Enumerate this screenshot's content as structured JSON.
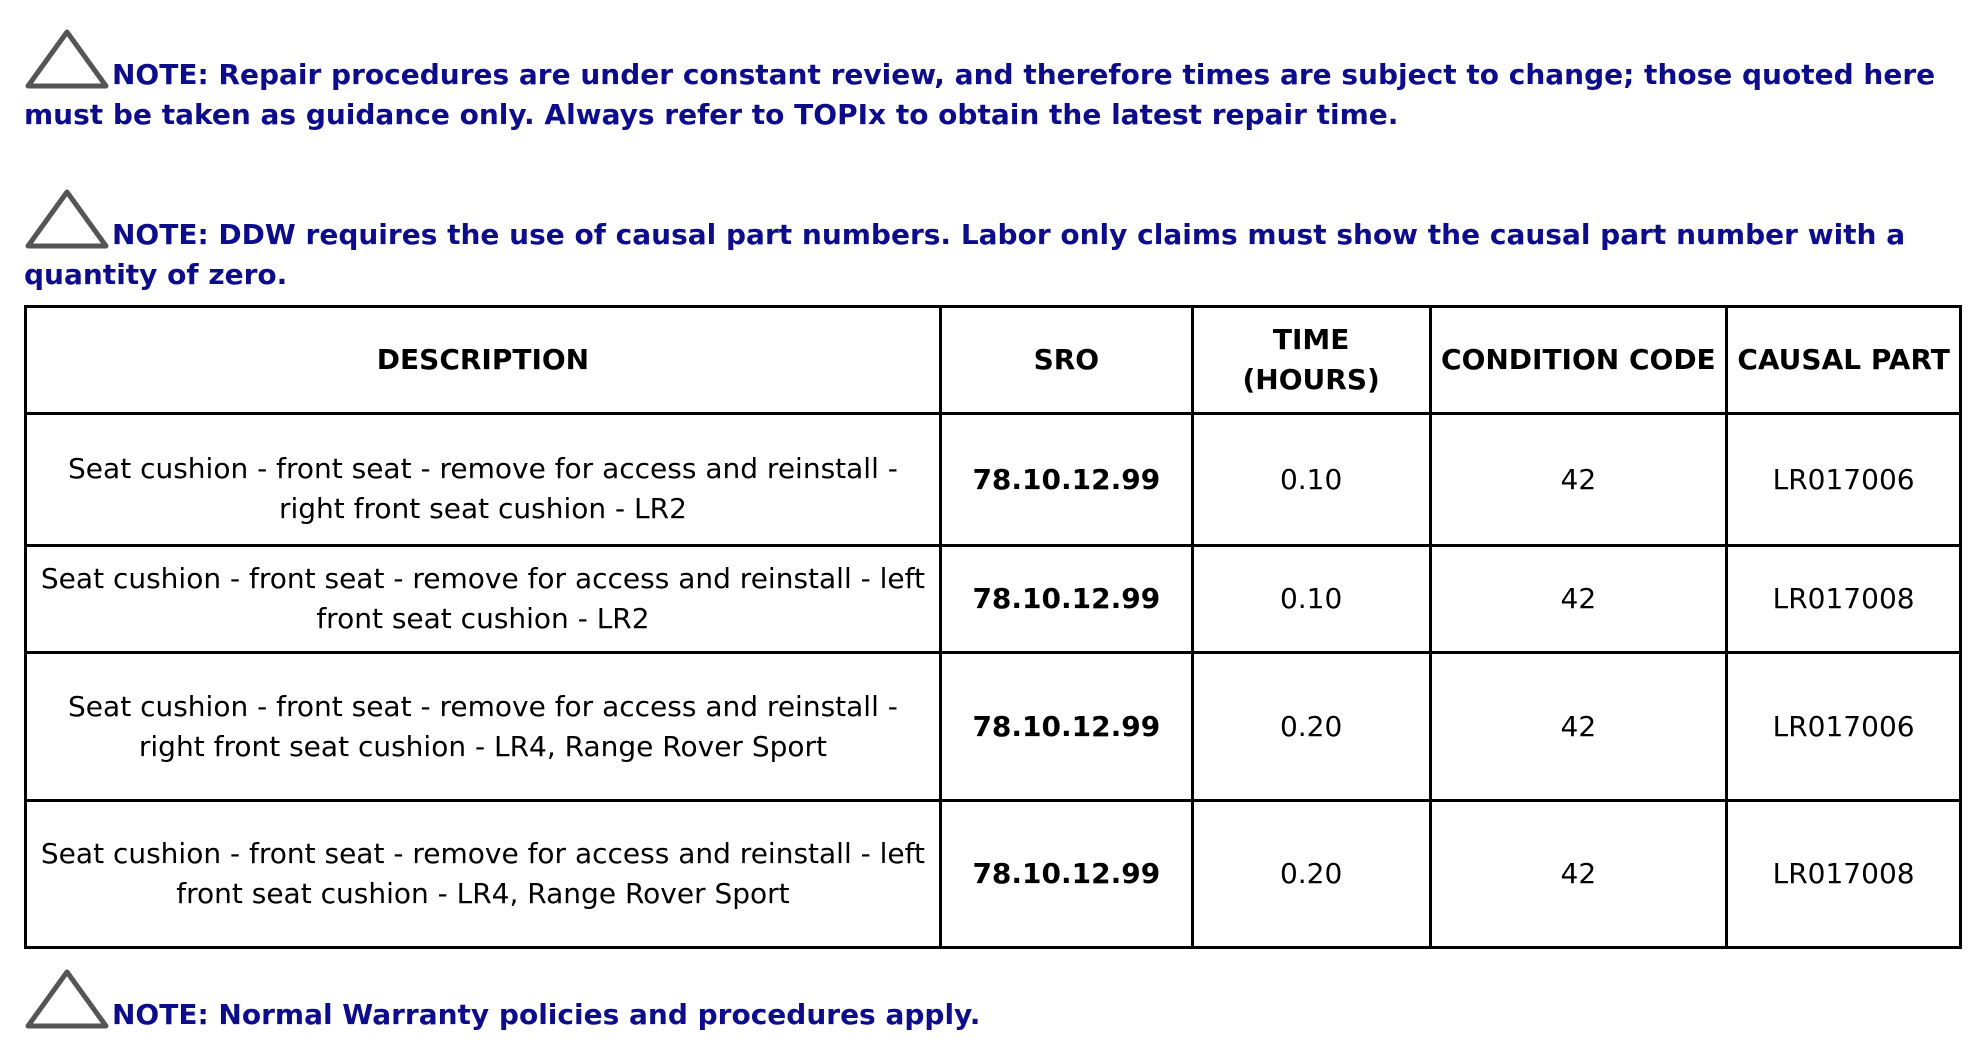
{
  "notes": [
    {
      "icon": "warning-triangle-icon",
      "text": "NOTE: Repair procedures are under constant review, and therefore times are subject to change; those quoted here must be taken as guidance only. Always refer to TOPIx to obtain the latest repair time."
    },
    {
      "icon": "warning-triangle-icon",
      "text": "NOTE: DDW requires the use of causal part numbers. Labor only claims must show the causal part number with a quantity of zero."
    },
    {
      "icon": "warning-triangle-icon",
      "text": "NOTE: Normal Warranty policies and procedures apply."
    }
  ],
  "table": {
    "headers": [
      "DESCRIPTION",
      "SRO",
      "TIME (HOURS)",
      "CONDITION CODE",
      "CAUSAL PART"
    ],
    "rows": [
      [
        "Seat cushion - front seat - remove for access and reinstall - right front seat cushion - LR2",
        "78.10.12.99",
        "0.10",
        "42",
        "LR017006"
      ],
      [
        "Seat cushion - front seat - remove for access and reinstall - left front seat cushion - LR2",
        "78.10.12.99",
        "0.10",
        "42",
        "LR017008"
      ],
      [
        "Seat cushion - front seat - remove for access and reinstall - right front seat cushion - LR4, Range Rover Sport",
        "78.10.12.99",
        "0.20",
        "42",
        "LR017006"
      ],
      [
        "Seat cushion - front seat - remove for access and reinstall - left front seat cushion - LR4, Range Rover Sport",
        "78.10.12.99",
        "0.20",
        "42",
        "LR017008"
      ]
    ]
  },
  "colors": {
    "note_text": "#0d0d8c",
    "table_text": "#000000"
  }
}
